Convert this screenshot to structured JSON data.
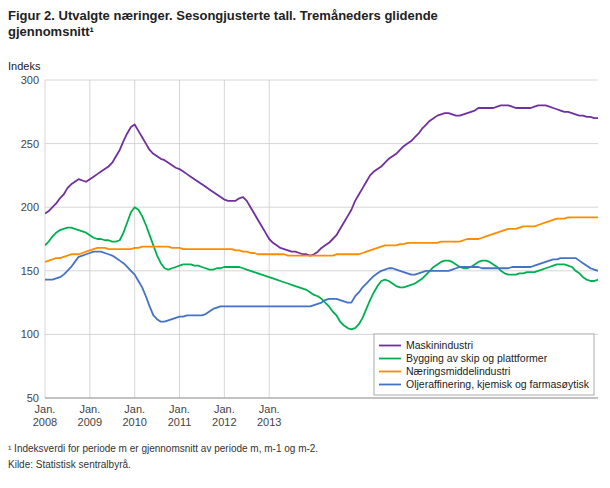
{
  "chart_data": {
    "type": "line",
    "title": "Figur 2. Utvalgte næringer. Sesongjusterte tall. Tremåneders glidende\ngjennomsnitt¹",
    "ylabel": "Indeks",
    "annotations": [
      "¹ Indeksverdi for periode m er gjennomsnitt av periode m, m-1 og m-2.",
      "Kilde: Statistisk sentralbyrå."
    ],
    "ylim": [
      50,
      300
    ],
    "yticks": [
      50,
      100,
      150,
      200,
      250,
      300
    ],
    "grid": true,
    "legend": "lower right",
    "categories": [
      "Jan.\n2008",
      null,
      null,
      null,
      null,
      null,
      null,
      null,
      null,
      null,
      null,
      null,
      "Jan.\n2009",
      null,
      null,
      null,
      null,
      null,
      null,
      null,
      null,
      null,
      null,
      null,
      "Jan.\n2010",
      null,
      null,
      null,
      null,
      null,
      null,
      null,
      null,
      null,
      null,
      null,
      "Jan.\n2011",
      null,
      null,
      null,
      null,
      null,
      null,
      null,
      null,
      null,
      null,
      null,
      "Jan.\n2012",
      null,
      null,
      null,
      null,
      null,
      null,
      null,
      null,
      null,
      null,
      null,
      "Jan.\n2013",
      null,
      null,
      null,
      null,
      null,
      null,
      null,
      null,
      null,
      null,
      null,
      null,
      null,
      null,
      null,
      null,
      null,
      null,
      null,
      null,
      null,
      null,
      null,
      null,
      null,
      null,
      null,
      null,
      null,
      null,
      null,
      null,
      null,
      null,
      null,
      null,
      null,
      null,
      null,
      null,
      null,
      null,
      null,
      null,
      null,
      null,
      null,
      null,
      null,
      null,
      null,
      null,
      null,
      null,
      null,
      null,
      null,
      null,
      null,
      null,
      null,
      null,
      null,
      null,
      null,
      null,
      null,
      null,
      null,
      null,
      null,
      null,
      null,
      null,
      null,
      null,
      null,
      null,
      null,
      null,
      null,
      null,
      null,
      null,
      null,
      null,
      null,
      null
    ],
    "series": [
      {
        "name": "Maskinindustri",
        "color": "#7030a0",
        "values": [
          195,
          197,
          200,
          203,
          207,
          210,
          215,
          218,
          220,
          222,
          221,
          220,
          222,
          224,
          226,
          228,
          230,
          232,
          235,
          240,
          245,
          252,
          258,
          263,
          265,
          260,
          255,
          250,
          245,
          242,
          240,
          238,
          237,
          235,
          233,
          231,
          230,
          228,
          226,
          224,
          222,
          220,
          218,
          216,
          214,
          212,
          210,
          208,
          206,
          205,
          205,
          205,
          207,
          208,
          205,
          200,
          195,
          190,
          185,
          180,
          175,
          172,
          170,
          168,
          167,
          166,
          165,
          165,
          164,
          163,
          163,
          162,
          163,
          165,
          168,
          170,
          172,
          175,
          178,
          183,
          188,
          193,
          198,
          205,
          210,
          215,
          220,
          225,
          228,
          230,
          232,
          235,
          238,
          240,
          242,
          245,
          248,
          250,
          252,
          255,
          258,
          262,
          265,
          268,
          270,
          272,
          273,
          274,
          274,
          273,
          272,
          272,
          273,
          274,
          275,
          276,
          278,
          278,
          278,
          278,
          278,
          279,
          280,
          280,
          280,
          279,
          278,
          278,
          278,
          278,
          278,
          279,
          280,
          280,
          280,
          279,
          278,
          277,
          276,
          275,
          275,
          274,
          273,
          272,
          272,
          271,
          271,
          270,
          270
        ]
      },
      {
        "name": "Bygging av skip og plattformer",
        "color": "#00b050",
        "values": [
          170,
          173,
          177,
          180,
          182,
          183,
          184,
          184,
          183,
          182,
          181,
          180,
          178,
          176,
          175,
          175,
          174,
          174,
          173,
          173,
          174,
          180,
          188,
          196,
          200,
          198,
          193,
          186,
          178,
          170,
          162,
          156,
          152,
          151,
          152,
          153,
          154,
          155,
          155,
          155,
          154,
          154,
          153,
          152,
          151,
          151,
          152,
          152,
          153,
          153,
          153,
          153,
          153,
          152,
          151,
          150,
          149,
          148,
          147,
          146,
          145,
          144,
          143,
          142,
          141,
          140,
          139,
          138,
          137,
          136,
          135,
          133,
          131,
          130,
          128,
          125,
          122,
          118,
          115,
          110,
          107,
          105,
          104,
          105,
          108,
          113,
          120,
          127,
          133,
          138,
          142,
          143,
          142,
          140,
          138,
          137,
          137,
          138,
          139,
          140,
          142,
          144,
          147,
          150,
          153,
          155,
          157,
          158,
          158,
          157,
          155,
          153,
          152,
          152,
          153,
          155,
          157,
          158,
          158,
          157,
          155,
          153,
          150,
          148,
          147,
          147,
          147,
          148,
          148,
          149,
          149,
          149,
          150,
          151,
          152,
          153,
          154,
          155,
          155,
          155,
          154,
          153,
          150,
          148,
          145,
          143,
          142,
          142,
          143
        ]
      },
      {
        "name": "Næringsmiddelindustri",
        "color": "#ff8c00",
        "values": [
          157,
          158,
          159,
          160,
          160,
          161,
          162,
          163,
          163,
          163,
          164,
          165,
          166,
          167,
          168,
          168,
          168,
          167,
          167,
          167,
          167,
          167,
          167,
          167,
          168,
          168,
          169,
          169,
          169,
          169,
          169,
          169,
          169,
          169,
          168,
          168,
          168,
          167,
          167,
          167,
          167,
          167,
          167,
          167,
          167,
          167,
          167,
          167,
          167,
          167,
          167,
          166,
          166,
          165,
          165,
          164,
          164,
          163,
          163,
          163,
          163,
          163,
          163,
          163,
          163,
          162,
          162,
          162,
          162,
          162,
          162,
          162,
          162,
          162,
          162,
          162,
          162,
          162,
          163,
          163,
          163,
          163,
          163,
          163,
          163,
          164,
          165,
          166,
          167,
          168,
          169,
          170,
          170,
          170,
          170,
          171,
          171,
          172,
          172,
          172,
          172,
          172,
          172,
          172,
          172,
          172,
          173,
          173,
          173,
          173,
          173,
          173,
          174,
          175,
          175,
          175,
          175,
          176,
          177,
          178,
          179,
          180,
          181,
          182,
          183,
          183,
          183,
          184,
          185,
          185,
          185,
          185,
          186,
          187,
          188,
          189,
          190,
          191,
          191,
          191,
          192,
          192,
          192,
          192,
          192,
          192,
          192,
          192,
          192
        ]
      },
      {
        "name": "Oljeraffinering, kjemisk og farmasøytisk",
        "color": "#4472c4",
        "values": [
          143,
          143,
          143,
          144,
          145,
          147,
          150,
          153,
          157,
          161,
          162,
          163,
          164,
          165,
          165,
          165,
          164,
          163,
          162,
          160,
          158,
          156,
          153,
          150,
          147,
          142,
          137,
          130,
          122,
          115,
          112,
          110,
          110,
          111,
          112,
          113,
          114,
          114,
          115,
          115,
          115,
          115,
          115,
          116,
          118,
          120,
          121,
          122,
          122,
          122,
          122,
          122,
          122,
          122,
          122,
          122,
          122,
          122,
          122,
          122,
          122,
          122,
          122,
          122,
          122,
          122,
          122,
          122,
          122,
          122,
          122,
          122,
          123,
          124,
          125,
          127,
          128,
          128,
          128,
          127,
          126,
          125,
          125,
          130,
          133,
          137,
          140,
          143,
          146,
          148,
          150,
          151,
          152,
          152,
          151,
          150,
          149,
          148,
          147,
          147,
          148,
          149,
          150,
          150,
          150,
          150,
          150,
          150,
          150,
          151,
          152,
          153,
          153,
          153,
          153,
          153,
          153,
          152,
          152,
          152,
          152,
          152,
          152,
          152,
          152,
          153,
          153,
          153,
          153,
          153,
          153,
          154,
          155,
          156,
          157,
          158,
          159,
          159,
          160,
          160,
          160,
          160,
          160,
          158,
          156,
          154,
          152,
          151,
          150
        ]
      }
    ]
  }
}
